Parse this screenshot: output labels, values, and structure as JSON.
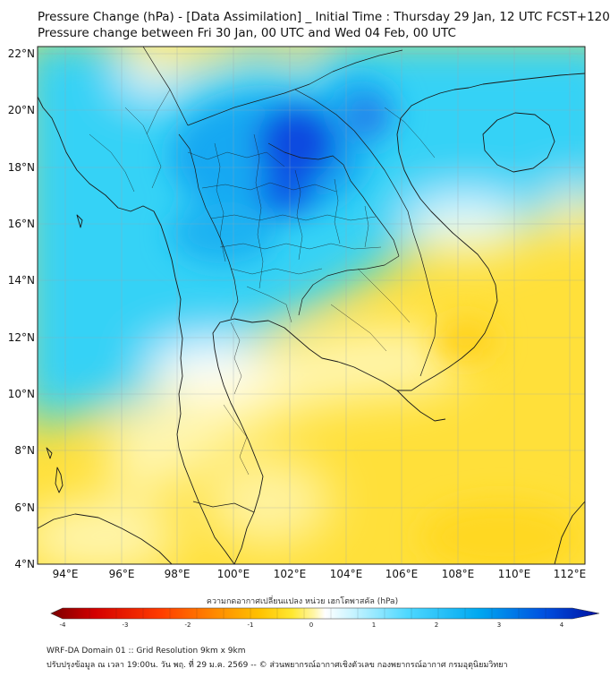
{
  "header": {
    "title": "Pressure Change (hPa) - [Data Assimilation] _ Initial Time : Thursday 29 Jan, 12 UTC FCST+120",
    "subtitle": "Pressure change between Fri 30 Jan, 00 UTC and Wed 04 Feb, 00 UTC"
  },
  "map": {
    "lat_labels": [
      "22°N",
      "20°N",
      "18°N",
      "16°N",
      "14°N",
      "12°N",
      "10°N",
      "8°N",
      "6°N",
      "4°N"
    ],
    "lon_labels": [
      "94°E",
      "96°E",
      "98°E",
      "100°E",
      "102°E",
      "104°E",
      "106°E",
      "108°E",
      "110°E",
      "112°E"
    ],
    "lat_range": [
      4,
      22.3
    ],
    "lon_range": [
      93,
      112.8
    ],
    "gridlines": true
  },
  "colorbar": {
    "title": "ความกดอากาศเปลี่ยนแปลง หน่วย เฮกโตพาสคัล (hPa)",
    "tick_labels": [
      "-4",
      "-3",
      "-2",
      "-1",
      "0",
      "1",
      "2",
      "3",
      "4"
    ],
    "range": [
      -4,
      4
    ],
    "colors": [
      "#7a0000",
      "#d40000",
      "#ff3c00",
      "#ff8a00",
      "#ffc200",
      "#ffe830",
      "#fff6a8",
      "#ffffff",
      "#c8f4ff",
      "#4ed8ff",
      "#00a8f0",
      "#0050e0",
      "#0010a0"
    ]
  },
  "footer": {
    "line1": "WRF-DA Domain 01 :: Grid Resolution 9km x 9km",
    "line2": "ปรับปรุงข้อมูล ณ เวลา 19:00น. วัน พฤ. ที่ 29 ม.ค. 2569 -- © ส่วนพยากรณ์อากาศเชิงตัวเลข กองพยากรณ์อากาศ กรมอุตุนิยมวิทยา"
  }
}
